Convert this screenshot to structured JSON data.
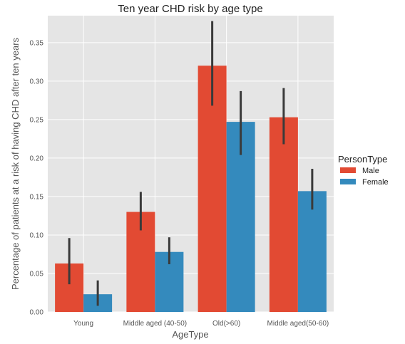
{
  "chart_data": {
    "type": "bar",
    "title": "Ten year CHD risk by age type",
    "xlabel": "AgeType",
    "ylabel": "Percentage of patients at a risk of having CHD after ten years",
    "categories": [
      "Young",
      "Middle aged (40-50)",
      "Old(>60)",
      "Middle aged(50-60)"
    ],
    "ylim": [
      0,
      0.385
    ],
    "yticks": [
      0.0,
      0.05,
      0.1,
      0.15,
      0.2,
      0.25,
      0.3,
      0.35
    ],
    "ytick_labels": [
      "0.00",
      "0.05",
      "0.10",
      "0.15",
      "0.20",
      "0.25",
      "0.30",
      "0.35"
    ],
    "grid": true,
    "legend": {
      "title": "PersonType",
      "placement": "right"
    },
    "series": [
      {
        "name": "Male",
        "color": "#E24A33",
        "values": [
          0.063,
          0.13,
          0.32,
          0.253
        ],
        "ci_low": [
          0.036,
          0.106,
          0.268,
          0.218
        ],
        "ci_high": [
          0.096,
          0.156,
          0.378,
          0.291
        ]
      },
      {
        "name": "Female",
        "color": "#348ABD",
        "values": [
          0.023,
          0.078,
          0.247,
          0.157
        ],
        "ci_low": [
          0.008,
          0.062,
          0.204,
          0.133
        ],
        "ci_high": [
          0.041,
          0.097,
          0.287,
          0.186
        ]
      }
    ]
  }
}
